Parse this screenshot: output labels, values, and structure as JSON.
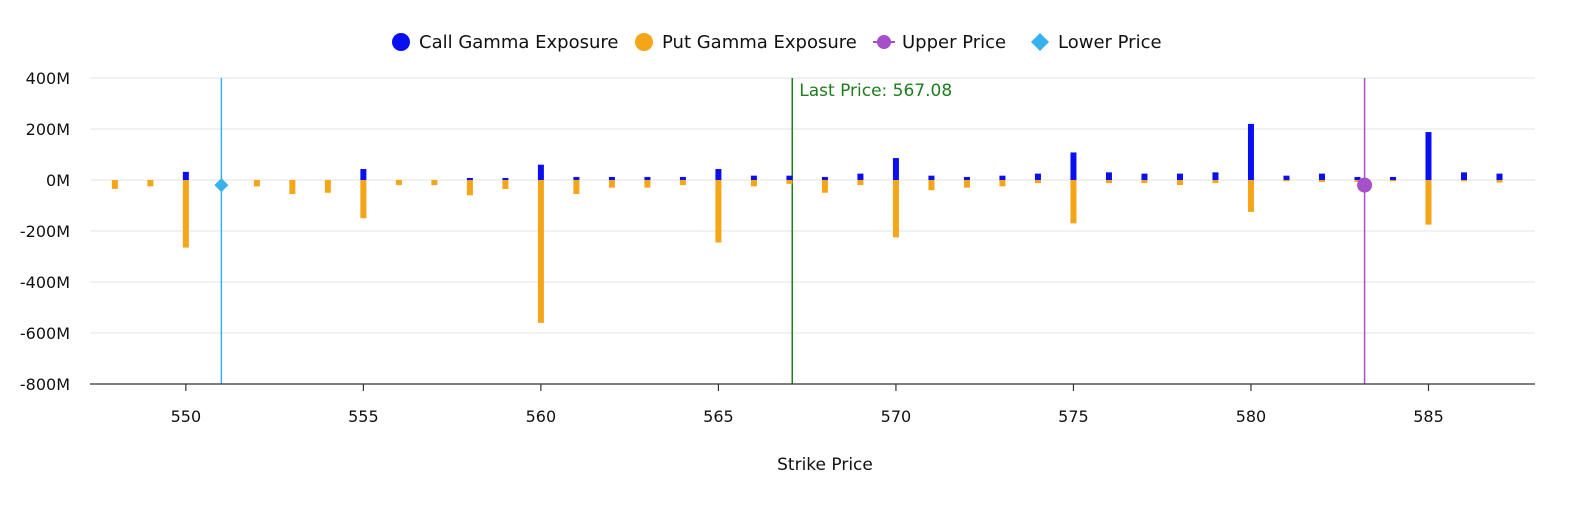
{
  "chart_data": {
    "type": "bar",
    "xlabel": "Strike Price",
    "ylabel": "",
    "ylim": [
      -800000000,
      400000000
    ],
    "xlim": [
      547.3,
      588.0
    ],
    "yticks": [
      {
        "value": 400000000,
        "label": "400M"
      },
      {
        "value": 200000000,
        "label": "200M"
      },
      {
        "value": 0,
        "label": "0M"
      },
      {
        "value": -200000000,
        "label": "-200M"
      },
      {
        "value": -400000000,
        "label": "-400M"
      },
      {
        "value": -600000000,
        "label": "-600M"
      },
      {
        "value": -800000000,
        "label": "-800M"
      }
    ],
    "xticks": [
      {
        "value": 550,
        "label": "550"
      },
      {
        "value": 555,
        "label": "555"
      },
      {
        "value": 560,
        "label": "560"
      },
      {
        "value": 565,
        "label": "565"
      },
      {
        "value": 570,
        "label": "570"
      },
      {
        "value": 575,
        "label": "575"
      },
      {
        "value": 580,
        "label": "580"
      },
      {
        "value": 585,
        "label": "585"
      }
    ],
    "grid": true,
    "legend": {
      "placement": "top-center",
      "items": [
        {
          "label": "Call Gamma Exposure",
          "marker": "circle",
          "color": "#0a0ff0"
        },
        {
          "label": "Put Gamma Exposure",
          "marker": "circle",
          "color": "#f5a518"
        },
        {
          "label": "Upper Price",
          "marker": "line-circle",
          "color": "#a64fc9"
        },
        {
          "label": "Lower Price",
          "marker": "diamond",
          "color": "#36b1ee"
        }
      ]
    },
    "x": [
      548,
      549,
      550,
      551,
      552,
      553,
      554,
      555,
      556,
      557,
      558,
      559,
      560,
      561,
      562,
      563,
      564,
      565,
      566,
      567,
      568,
      569,
      570,
      571,
      572,
      573,
      574,
      575,
      576,
      577,
      578,
      579,
      580,
      581,
      582,
      583,
      584,
      585,
      586,
      587
    ],
    "series": [
      {
        "name": "Call Gamma Exposure",
        "color": "#0a0ff0",
        "values": [
          0,
          0,
          32000000,
          0,
          0,
          0,
          0,
          43000000,
          0,
          0,
          8000000,
          8000000,
          60000000,
          12000000,
          12000000,
          12000000,
          12000000,
          43000000,
          17000000,
          17000000,
          12000000,
          25000000,
          86000000,
          17000000,
          12000000,
          17000000,
          25000000,
          108000000,
          30000000,
          25000000,
          25000000,
          30000000,
          220000000,
          17000000,
          25000000,
          12000000,
          12000000,
          188000000,
          30000000,
          25000000
        ]
      },
      {
        "name": "Put Gamma Exposure",
        "color": "#f5a518",
        "values": [
          -35000000,
          -25000000,
          -265000000,
          0,
          -25000000,
          -55000000,
          -50000000,
          -150000000,
          -20000000,
          -20000000,
          -60000000,
          -35000000,
          -560000000,
          -55000000,
          -30000000,
          -30000000,
          -20000000,
          -245000000,
          -25000000,
          -15000000,
          -50000000,
          -20000000,
          -225000000,
          -40000000,
          -30000000,
          -25000000,
          -12000000,
          -170000000,
          -12000000,
          -12000000,
          -20000000,
          -12000000,
          -125000000,
          -5000000,
          -8000000,
          -8000000,
          -5000000,
          -175000000,
          -5000000,
          -10000000
        ]
      }
    ],
    "reference_lines": [
      {
        "name": "Lower Price",
        "x": 551,
        "y": -20000000,
        "color": "#36b1ee",
        "marker": "diamond"
      },
      {
        "name": "Upper Price",
        "x": 583.2,
        "y": -20000000,
        "color": "#a64fc9",
        "marker": "circle"
      },
      {
        "name": "Last Price",
        "x": 567.08,
        "color": "#1e7d1e",
        "label": "Last Price: 567.08"
      }
    ]
  }
}
